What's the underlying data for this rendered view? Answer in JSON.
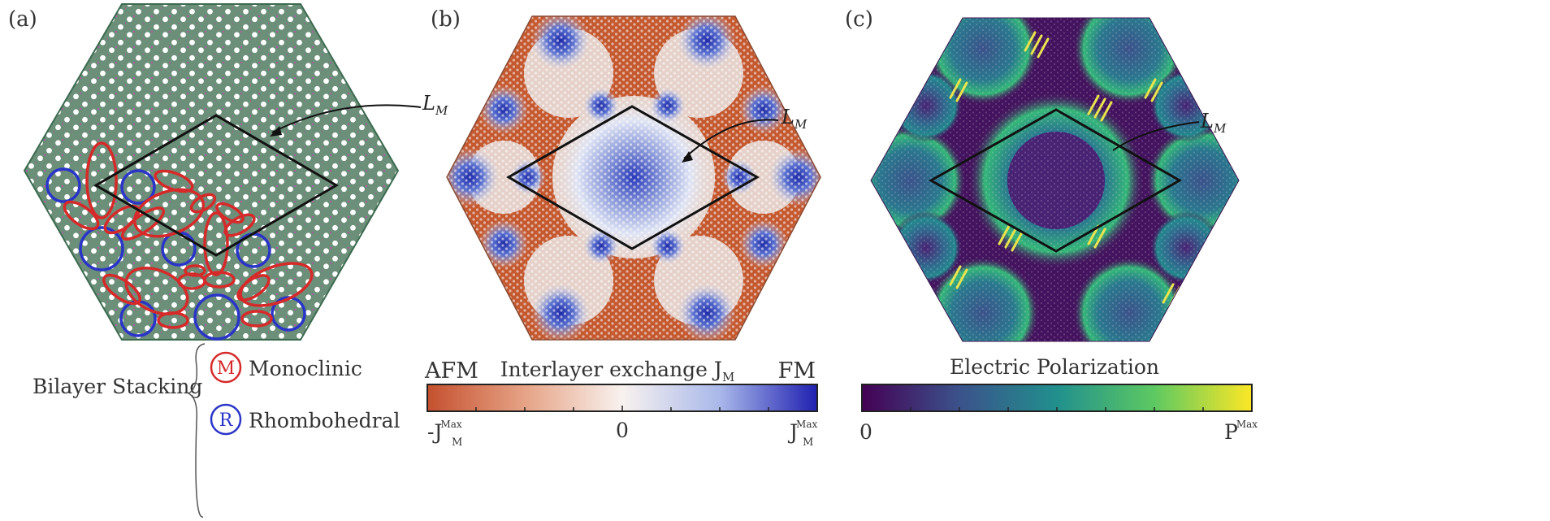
{
  "panels": {
    "a": {
      "label": "(a)",
      "moire_label": "L",
      "moire_sub": "M",
      "legend_title": "Bilayer Stacking",
      "legend_items": [
        {
          "symbol": "M",
          "label": "Monoclinic",
          "color": "#d62a2a"
        },
        {
          "symbol": "R",
          "label": "Rhombohedral",
          "color": "#2a35c8"
        }
      ],
      "lattice_color": "#4f7e63",
      "atom_color": "#b05aa7"
    },
    "b": {
      "label": "(b)",
      "moire_label": "L",
      "moire_sub": "M",
      "colorbar": {
        "title": "Interlayer exchange J",
        "title_sub": "M",
        "left_end": "AFM",
        "right_end": "FM",
        "ticks": {
          "min": {
            "prefix": "-",
            "base": "J",
            "sub": "M",
            "sup": "Max"
          },
          "mid": "0",
          "max": {
            "prefix": "",
            "base": "J",
            "sub": "M",
            "sup": "Max"
          }
        },
        "colors": [
          "#c4502e",
          "#f0d8cc",
          "#ffffff",
          "#c8d4f2",
          "#2020b0"
        ]
      }
    },
    "c": {
      "label": "(c)",
      "moire_label": "L",
      "moire_sub": "M",
      "colorbar": {
        "title": "Electric Polarization",
        "ticks": {
          "min": "0",
          "max": {
            "base": "P",
            "sup": "Max"
          }
        },
        "colors": [
          "#440154",
          "#3b528b",
          "#21908d",
          "#5dc962",
          "#fde725"
        ]
      }
    }
  }
}
